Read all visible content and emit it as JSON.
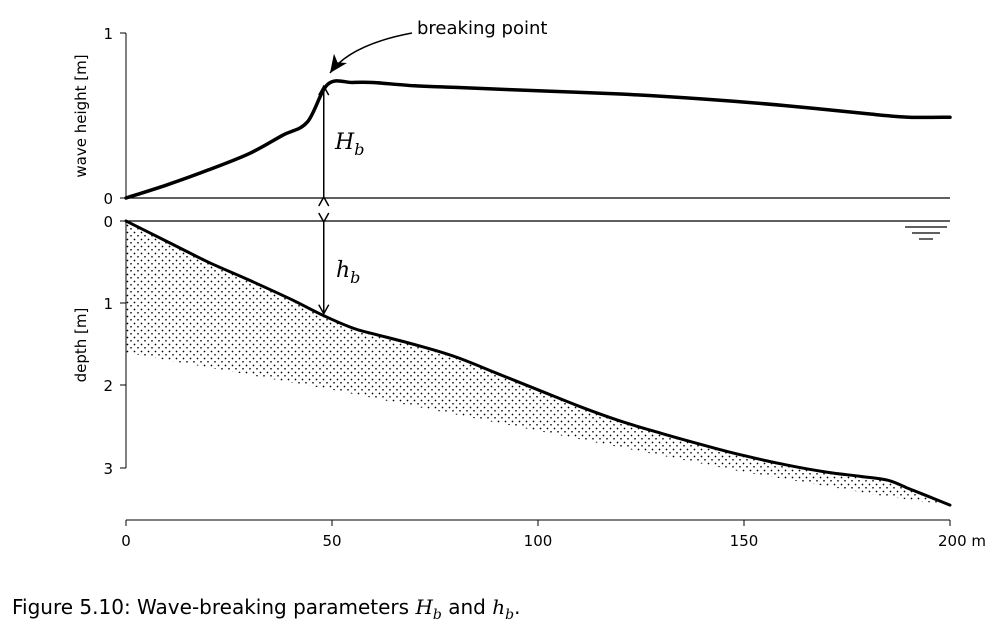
{
  "figure": {
    "caption_prefix": "Figure 5.10: Wave-breaking parameters ",
    "caption_h1": "H",
    "caption_h1_sub": "b",
    "caption_mid": " and ",
    "caption_h2": "h",
    "caption_h2_sub": "b",
    "caption_suffix": "."
  },
  "chart_data": [
    {
      "type": "line",
      "ylabel": "wave height [m]",
      "ylim": [
        0,
        1
      ],
      "yticks": [
        "0",
        "1"
      ],
      "xlim": [
        0,
        200
      ],
      "grid": false,
      "series": [
        {
          "x": [
            0,
            10,
            20,
            30,
            38,
            44,
            49,
            55,
            60,
            70,
            80,
            100,
            120,
            140,
            160,
            180,
            190,
            200
          ],
          "y": [
            0,
            0.08,
            0.17,
            0.27,
            0.38,
            0.46,
            0.69,
            0.7,
            0.7,
            0.68,
            0.67,
            0.65,
            0.63,
            0.6,
            0.56,
            0.51,
            0.49,
            0.49
          ]
        }
      ],
      "annotations": [
        {
          "text": "breaking point",
          "x": 49,
          "y": 0.69
        },
        {
          "text": "H",
          "sub": "b",
          "x": 48,
          "y0": 0,
          "y1": 0.69
        }
      ]
    },
    {
      "type": "area",
      "ylabel": "depth [m]",
      "ylim": [
        0,
        3.6
      ],
      "yinverted": true,
      "yticks": [
        "0",
        "1",
        "2",
        "3"
      ],
      "xlim": [
        0,
        200
      ],
      "xticks": [
        "0",
        "50",
        "100",
        "150",
        "200 m"
      ],
      "grid": false,
      "series": [
        {
          "x": [
            0,
            10,
            20,
            30,
            40,
            48,
            55,
            60,
            70,
            80,
            90,
            100,
            110,
            120,
            130,
            140,
            150,
            160,
            170,
            178,
            185,
            190,
            195,
            200
          ],
          "y": [
            0,
            0.25,
            0.5,
            0.72,
            0.95,
            1.15,
            1.3,
            1.37,
            1.5,
            1.65,
            1.85,
            2.05,
            2.25,
            2.43,
            2.58,
            2.72,
            2.85,
            2.96,
            3.05,
            3.1,
            3.15,
            3.25,
            3.35,
            3.45
          ]
        }
      ],
      "annotations": [
        {
          "text": "h",
          "sub": "b",
          "x": 48,
          "y0": 0,
          "y1": 1.15
        }
      ]
    }
  ]
}
